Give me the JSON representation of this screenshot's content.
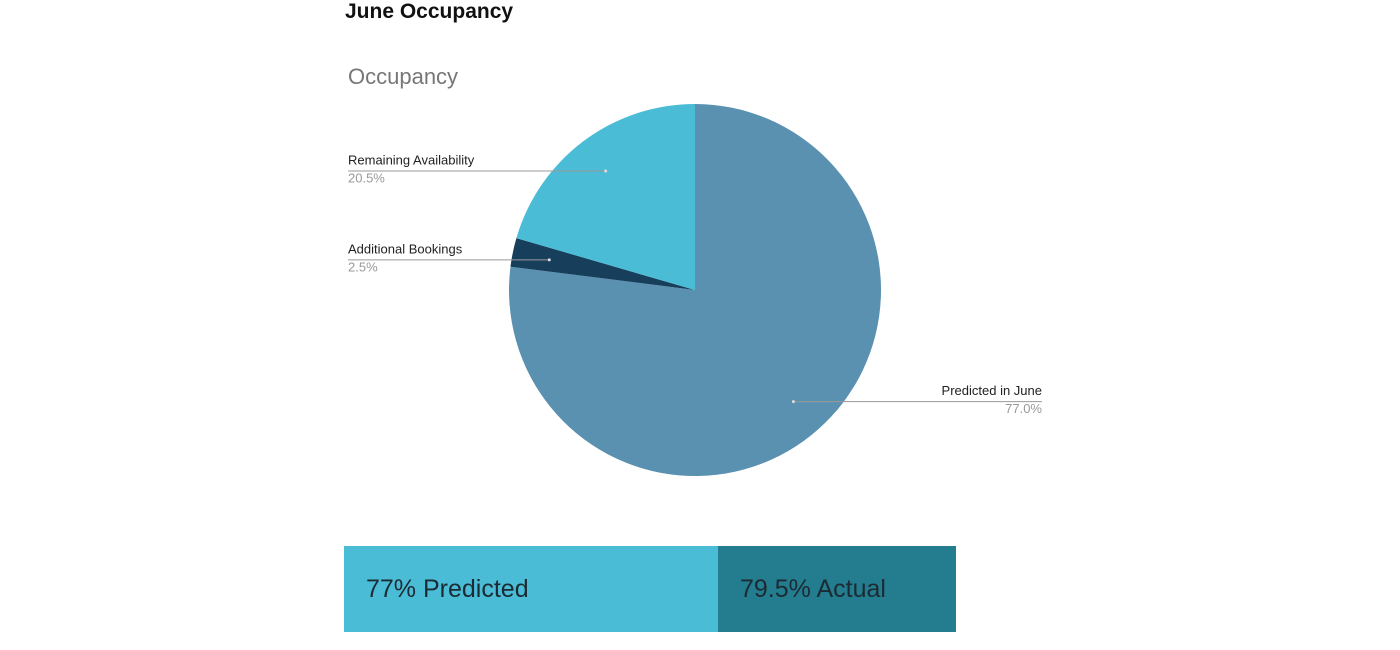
{
  "header": {
    "title": "June Occupancy"
  },
  "chart_data": {
    "type": "pie",
    "title": "Occupancy",
    "categories": [
      "Predicted in June",
      "Additional Bookings",
      "Remaining Availability"
    ],
    "values": [
      77.0,
      2.5,
      20.5
    ],
    "value_labels": [
      "77.0%",
      "2.5%",
      "20.5%"
    ],
    "colors": [
      "#5a91b0",
      "#173f5c",
      "#4bbcd6"
    ]
  },
  "summary": {
    "items": [
      "77% Predicted",
      "79.5% Actual"
    ]
  }
}
